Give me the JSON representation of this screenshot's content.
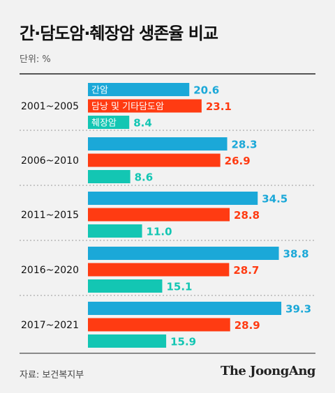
{
  "header": {
    "title": "간·담도암·췌장암 생존율 비교",
    "unit": "단위: %"
  },
  "footer": {
    "source": "자료: 보건복지부",
    "logo": "The JoongAng"
  },
  "colors": {
    "간암": "#1ba8d8",
    "담낭 및 기타담도암": "#ff3b12",
    "췌장암": "#13c6b3"
  },
  "chart_data": {
    "type": "bar",
    "orientation": "horizontal",
    "categories": [
      "2001~2005",
      "2006~2010",
      "2011~2015",
      "2016~2020",
      "2017~2021"
    ],
    "series": [
      {
        "name": "간암",
        "values": [
          20.6,
          28.3,
          34.5,
          38.8,
          39.3
        ]
      },
      {
        "name": "담낭 및 기타담도암",
        "values": [
          23.1,
          26.9,
          28.8,
          28.7,
          28.9
        ]
      },
      {
        "name": "췌장암",
        "values": [
          8.4,
          8.6,
          11.0,
          15.1,
          15.9
        ]
      }
    ],
    "legend": "inside bars of first group",
    "grid": false
  }
}
